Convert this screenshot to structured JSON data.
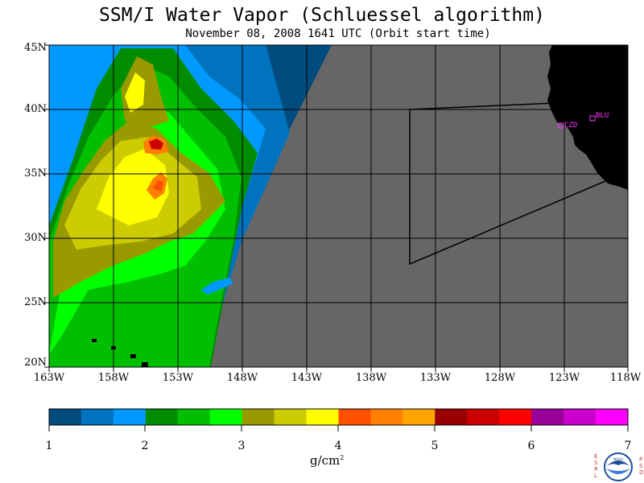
{
  "header": {
    "title": "SSM/I Water Vapor (Schluessel algorithm)",
    "subtitle": "November 08, 2008  1641 UTC  (Orbit start time)"
  },
  "map": {
    "lat_labels": [
      "45N",
      "40N",
      "35N",
      "30N",
      "25N",
      "20N"
    ],
    "lon_labels": [
      "163W",
      "158W",
      "153W",
      "148W",
      "143W",
      "138W",
      "133W",
      "128W",
      "123W",
      "118W"
    ],
    "stations": [
      {
        "code": "CZD",
        "color": "#ff33ff"
      },
      {
        "code": "BLU",
        "color": "#ff33ff"
      }
    ],
    "no_data_color": "#666666",
    "land_color": "#000000"
  },
  "colorbar": {
    "colors": [
      "#004c7f",
      "#0073bf",
      "#0099ff",
      "#008c00",
      "#00bf00",
      "#00ff00",
      "#999900",
      "#cccc00",
      "#ffff00",
      "#ff5000",
      "#ff7f00",
      "#ffa500",
      "#990000",
      "#cc0000",
      "#ff0000",
      "#990099",
      "#cc00cc",
      "#ff00ff"
    ],
    "tick_labels": [
      "1",
      "2",
      "3",
      "4",
      "5",
      "6",
      "7"
    ],
    "units_base": "g/cm",
    "units_exp": "2"
  },
  "logo": {
    "left_letters": "ESRL",
    "right_letters": "PSD",
    "center_text": "NOAA"
  }
}
